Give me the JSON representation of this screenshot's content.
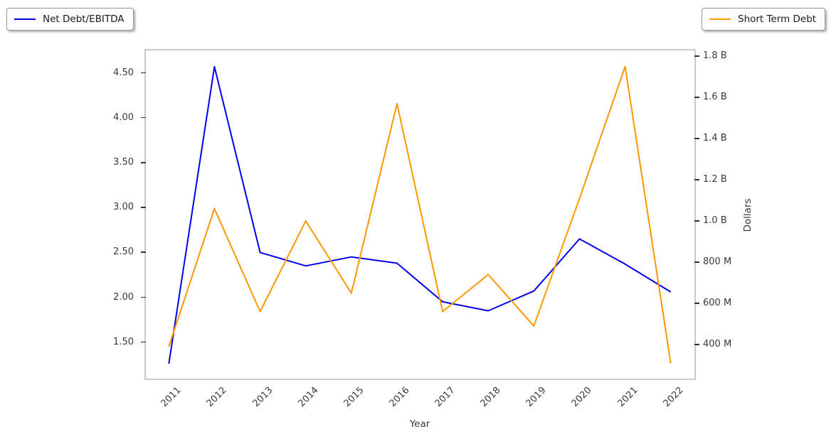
{
  "chart_data": {
    "type": "line",
    "title": "",
    "xlabel": "Year",
    "x": [
      2011,
      2012,
      2013,
      2014,
      2015,
      2016,
      2017,
      2018,
      2019,
      2020,
      2021,
      2022
    ],
    "series": [
      {
        "name": "Net Debt/EBITDA",
        "axis": "left",
        "color": "#0000ee",
        "values": [
          1.26,
          4.57,
          2.5,
          2.35,
          2.45,
          2.38,
          1.95,
          1.85,
          2.07,
          2.65,
          2.37,
          2.06
        ]
      },
      {
        "name": "Short Term Debt",
        "axis": "right",
        "color": "#ff9800",
        "unit": "USD",
        "values_billions": [
          0.39,
          1.06,
          0.56,
          1.0,
          0.65,
          1.57,
          0.56,
          0.74,
          0.49,
          1.11,
          1.75,
          0.31
        ]
      }
    ],
    "left_axis": {
      "tick_values": [
        4.5,
        4.0,
        3.5,
        3.0,
        2.5,
        2.0,
        1.5
      ],
      "tick_labels": [
        "4.50",
        "4.00",
        "3.50",
        "3.00",
        "2.50",
        "2.00",
        "1.50"
      ],
      "range": [
        1.09,
        4.75
      ]
    },
    "right_axis": {
      "label": "Dollars",
      "tick_values": [
        1.8,
        1.6,
        1.4,
        1.2,
        1.0,
        0.8,
        0.6,
        0.4
      ],
      "tick_labels": [
        "1.8 B",
        "1.6 B",
        "1.4 B",
        "1.2 B",
        "1.0 B",
        "800 M",
        "600 M",
        "400 M"
      ],
      "range_billions": [
        0.23,
        1.83
      ]
    },
    "x_axis": {
      "tick_labels": [
        "2011",
        "2012",
        "2013",
        "2014",
        "2015",
        "2016",
        "2017",
        "2018",
        "2019",
        "2020",
        "2021",
        "2022"
      ]
    },
    "legend": {
      "grid": false,
      "positions": [
        "top-left",
        "top-right"
      ]
    }
  }
}
